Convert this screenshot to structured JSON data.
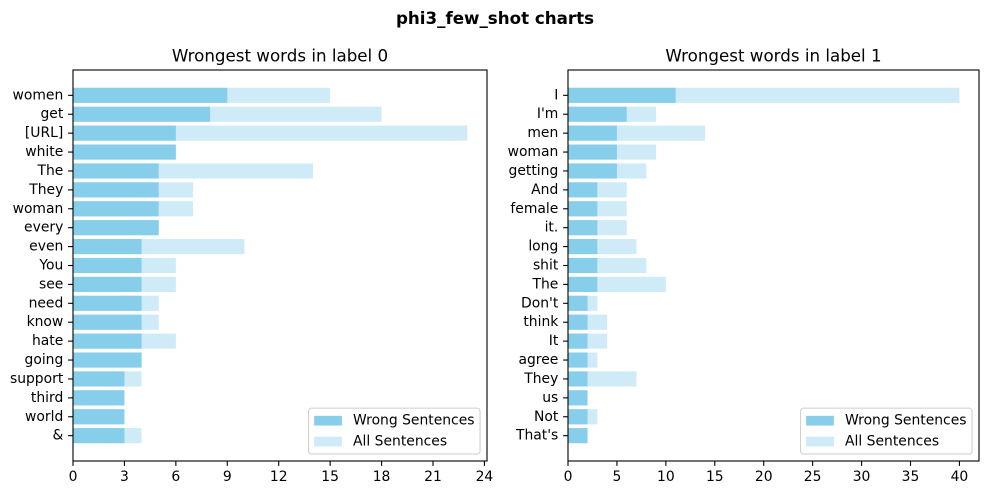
{
  "figure": {
    "suptitle": "phi3_few_shot charts"
  },
  "chart_data": [
    {
      "type": "bar",
      "orientation": "horizontal",
      "title": "Wrongest words in label 0",
      "categories": [
        "women",
        "get",
        "[URL]",
        "white",
        "The",
        "They",
        "woman",
        "every",
        "even",
        "You",
        "see",
        "need",
        "know",
        "hate",
        "going",
        "support",
        "third",
        "world",
        "&"
      ],
      "series": [
        {
          "name": "Wrong Sentences",
          "color": "#87CEEB",
          "values": [
            9,
            8,
            6,
            6,
            5,
            5,
            5,
            5,
            4,
            4,
            4,
            4,
            4,
            4,
            4,
            3,
            3,
            3,
            3
          ]
        },
        {
          "name": "All Sentences",
          "color": "#CFEBF7",
          "values": [
            15,
            18,
            23,
            6,
            14,
            7,
            7,
            5,
            10,
            6,
            6,
            5,
            5,
            6,
            4,
            4,
            3,
            3,
            4
          ]
        }
      ],
      "xticks": [
        0,
        3,
        6,
        9,
        12,
        15,
        18,
        21,
        24
      ],
      "xlim": [
        0,
        24.15
      ],
      "grid": false,
      "legend": "lower right"
    },
    {
      "type": "bar",
      "orientation": "horizontal",
      "title": "Wrongest words in label 1",
      "categories": [
        "I",
        "I'm",
        "men",
        "woman",
        "getting",
        "And",
        "female",
        "it.",
        "long",
        "shit",
        "The",
        "Don't",
        "think",
        "It",
        "agree",
        "They",
        "us",
        "Not",
        "That's"
      ],
      "series": [
        {
          "name": "Wrong Sentences",
          "color": "#87CEEB",
          "values": [
            11,
            6,
            5,
            5,
            5,
            3,
            3,
            3,
            3,
            3,
            3,
            2,
            2,
            2,
            2,
            2,
            2,
            2,
            2
          ]
        },
        {
          "name": "All Sentences",
          "color": "#CFEBF7",
          "values": [
            40,
            9,
            14,
            9,
            8,
            6,
            6,
            6,
            7,
            8,
            10,
            3,
            4,
            4,
            3,
            7,
            2,
            3,
            2
          ]
        }
      ],
      "xticks": [
        0,
        5,
        10,
        15,
        20,
        25,
        30,
        35,
        40
      ],
      "xlim": [
        0,
        42
      ],
      "grid": false,
      "legend": "lower right"
    }
  ]
}
